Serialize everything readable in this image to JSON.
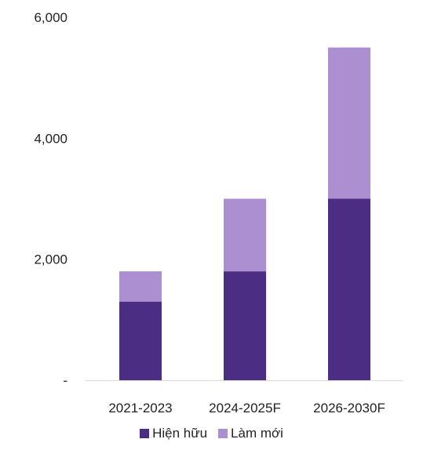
{
  "chart_data": {
    "type": "bar",
    "stacked": true,
    "categories": [
      "2021-2023",
      "2024-2025F",
      "2026-2030F"
    ],
    "series": [
      {
        "name": "Hiện hữu",
        "values": [
          1300,
          1800,
          3000
        ],
        "color": "#4b2e83"
      },
      {
        "name": "Làm mới",
        "values": [
          500,
          1200,
          2500
        ],
        "color": "#ac8fd0"
      }
    ],
    "ylim": [
      0,
      6000
    ],
    "yticks": [
      {
        "value": 0,
        "label": "-"
      },
      {
        "value": 2000,
        "label": "2,000"
      },
      {
        "value": 4000,
        "label": "4,000"
      },
      {
        "value": 6000,
        "label": "6,000"
      }
    ],
    "grid": false,
    "legend_position": "bottom",
    "title": "",
    "xlabel": "",
    "ylabel": ""
  }
}
